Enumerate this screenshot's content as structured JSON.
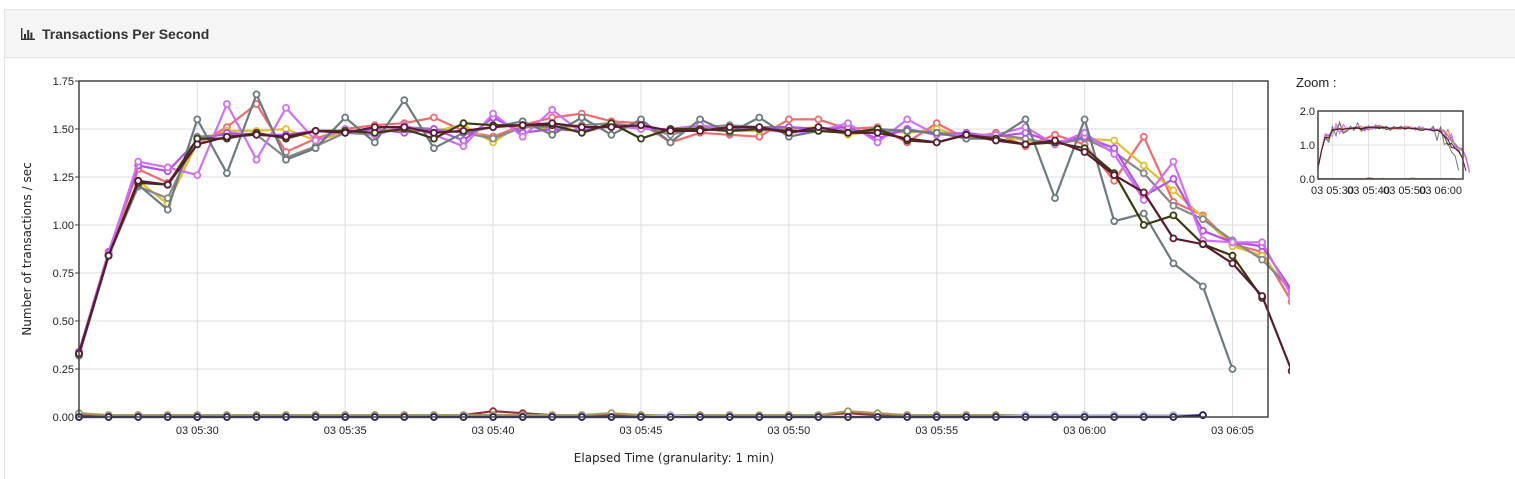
{
  "header": {
    "title": "Transactions Per Second",
    "icon": "bar-chart-icon"
  },
  "zoom": {
    "label": "Zoom :",
    "y_ticks": [
      "2.0",
      "1.0",
      "0.0"
    ],
    "x_ticks": [
      "03 05:30",
      "03 05:40",
      "03 05:50",
      "03 06:00"
    ]
  },
  "chart_data": {
    "type": "line",
    "title": "Transactions Per Second",
    "xlabel": "Elapsed Time (granularity: 1 min)",
    "ylabel": "Number of transactions / sec",
    "ylim": [
      0,
      1.75
    ],
    "xlim": [
      "03 05:26",
      "03 06:06"
    ],
    "y_ticks": [
      "0.00",
      "0.25",
      "0.50",
      "0.75",
      "1.00",
      "1.25",
      "1.50",
      "1.75"
    ],
    "x_ticks": [
      "03 05:30",
      "03 05:35",
      "03 05:40",
      "03 05:45",
      "03 05:50",
      "03 05:55",
      "03 06:00",
      "03 06:05"
    ],
    "grid": true,
    "x_start": "03 05:26",
    "x_step_minutes": 1,
    "series": [
      {
        "color": "#f06c6c",
        "values": [
          0.34,
          0.85,
          1.29,
          1.22,
          1.42,
          1.51,
          1.63,
          1.38,
          1.45,
          1.5,
          1.52,
          1.53,
          1.56,
          1.49,
          1.46,
          1.52,
          1.56,
          1.58,
          1.54,
          1.53,
          1.43,
          1.48,
          1.47,
          1.46,
          1.55,
          1.55,
          1.5,
          1.51,
          1.43,
          1.53,
          1.45,
          1.48,
          1.41,
          1.47,
          1.42,
          1.23,
          1.46,
          1.12,
          1.05,
          0.9,
          0.86,
          0.6,
          0.2
        ]
      },
      {
        "color": "#e0c030",
        "values": [
          0.33,
          0.85,
          1.23,
          1.11,
          1.43,
          1.49,
          1.49,
          1.5,
          1.44,
          1.48,
          1.5,
          1.49,
          1.49,
          1.52,
          1.43,
          1.53,
          1.49,
          1.52,
          1.53,
          1.51,
          1.48,
          1.5,
          1.49,
          1.49,
          1.5,
          1.51,
          1.47,
          1.49,
          1.48,
          1.5,
          1.46,
          1.47,
          1.44,
          1.43,
          1.45,
          1.44,
          1.31,
          1.18,
          1.04,
          0.89,
          0.84,
          0.65,
          0.22
        ]
      },
      {
        "color": "#888888",
        "values": [
          0.32,
          0.84,
          1.2,
          1.14,
          1.46,
          1.47,
          1.47,
          1.35,
          1.41,
          1.48,
          1.47,
          1.51,
          1.5,
          1.48,
          1.45,
          1.51,
          1.51,
          1.52,
          1.53,
          1.51,
          1.47,
          1.51,
          1.52,
          1.51,
          1.51,
          1.5,
          1.49,
          1.48,
          1.49,
          1.48,
          1.47,
          1.47,
          1.45,
          1.42,
          1.45,
          1.38,
          1.27,
          1.1,
          1.03,
          0.92,
          0.82,
          0.66,
          0.23
        ]
      },
      {
        "color": "#b44fe8",
        "values": [
          0.34,
          0.86,
          1.31,
          1.28,
          1.44,
          1.48,
          1.47,
          1.47,
          1.49,
          1.48,
          1.5,
          1.48,
          1.5,
          1.44,
          1.56,
          1.48,
          1.5,
          1.49,
          1.52,
          1.51,
          1.49,
          1.52,
          1.49,
          1.5,
          1.51,
          1.5,
          1.51,
          1.45,
          1.5,
          1.47,
          1.48,
          1.46,
          1.48,
          1.43,
          1.46,
          1.4,
          1.15,
          1.24,
          0.97,
          0.91,
          0.89,
          0.66,
          0.19
        ]
      },
      {
        "color": "#d070f0",
        "values": [
          0.33,
          0.85,
          1.33,
          1.3,
          1.26,
          1.63,
          1.34,
          1.61,
          1.44,
          1.5,
          1.47,
          1.52,
          1.47,
          1.41,
          1.58,
          1.46,
          1.6,
          1.48,
          1.52,
          1.5,
          1.5,
          1.52,
          1.5,
          1.5,
          1.48,
          1.49,
          1.53,
          1.43,
          1.55,
          1.47,
          1.47,
          1.47,
          1.51,
          1.42,
          1.48,
          1.37,
          1.13,
          1.33,
          0.92,
          0.91,
          0.91,
          0.63,
          0.2
        ]
      },
      {
        "color": "#6b7b80",
        "values": [
          0.32,
          0.84,
          1.21,
          1.08,
          1.55,
          1.27,
          1.68,
          1.34,
          1.4,
          1.56,
          1.43,
          1.65,
          1.4,
          1.48,
          1.51,
          1.54,
          1.47,
          1.56,
          1.47,
          1.55,
          1.43,
          1.55,
          1.48,
          1.56,
          1.46,
          1.49,
          1.48,
          1.5,
          1.49,
          1.48,
          1.45,
          1.45,
          1.55,
          1.14,
          1.55,
          1.02,
          1.06,
          0.8,
          0.68,
          0.25
        ]
      },
      {
        "color": "#3a3a10",
        "values": [
          0.33,
          0.84,
          1.22,
          1.21,
          1.45,
          1.45,
          1.48,
          1.45,
          1.49,
          1.49,
          1.48,
          1.5,
          1.45,
          1.53,
          1.52,
          1.52,
          1.52,
          1.48,
          1.53,
          1.45,
          1.5,
          1.5,
          1.49,
          1.5,
          1.49,
          1.49,
          1.48,
          1.5,
          1.44,
          1.43,
          1.47,
          1.45,
          1.42,
          1.43,
          1.4,
          1.27,
          1.0,
          1.05,
          0.9,
          0.84,
          0.62
        ]
      },
      {
        "color": "#5a1a30",
        "values": [
          0.33,
          0.84,
          1.23,
          1.21,
          1.42,
          1.46,
          1.47,
          1.46,
          1.49,
          1.48,
          1.51,
          1.51,
          1.48,
          1.49,
          1.51,
          1.52,
          1.53,
          1.51,
          1.51,
          1.52,
          1.49,
          1.49,
          1.51,
          1.51,
          1.48,
          1.51,
          1.48,
          1.48,
          1.45,
          1.43,
          1.47,
          1.44,
          1.42,
          1.44,
          1.38,
          1.26,
          1.17,
          0.93,
          0.9,
          0.8,
          0.63,
          0.24
        ]
      },
      {
        "color": "#9b2f2f",
        "values": [
          0.01,
          0.01,
          0.01,
          0.01,
          0.01,
          0.01,
          0.01,
          0.01,
          0.01,
          0.01,
          0.01,
          0.01,
          0.01,
          0.01,
          0.03,
          0.02,
          0.01,
          0.01,
          0.01,
          0.01,
          0.01,
          0.01,
          0.01,
          0.0,
          0.01,
          0.01,
          0.02,
          0.01,
          0.01,
          0.01,
          0.01,
          0.01,
          0.01,
          0.01,
          0.01,
          0.01,
          0.01,
          0.01,
          0.01
        ]
      },
      {
        "color": "#a09a60",
        "values": [
          0.02,
          0.01,
          0.01,
          0.01,
          0.01,
          0.01,
          0.01,
          0.01,
          0.01,
          0.01,
          0.01,
          0.01,
          0.01,
          0.01,
          0.01,
          0.01,
          0.01,
          0.01,
          0.02,
          0.01,
          0.01,
          0.01,
          0.01,
          0.01,
          0.01,
          0.01,
          0.03,
          0.02,
          0.01,
          0.01,
          0.01,
          0.01,
          0.01,
          0.01,
          0.01,
          0.01,
          0.01,
          0.01,
          0.01
        ]
      },
      {
        "color": "#b8c4d8",
        "values": [
          0.0,
          0.0,
          0.0,
          0.0,
          0.0,
          0.0,
          0.0,
          0.0,
          0.0,
          0.0,
          0.0,
          0.0,
          0.0,
          0.0,
          0.0,
          0.0,
          0.0,
          0.0,
          0.0,
          0.0,
          0.01,
          0.0,
          0.0,
          0.0,
          0.0,
          0.0,
          0.0,
          0.0,
          0.0,
          0.0,
          0.0,
          0.0,
          0.01,
          0.01,
          0.01,
          0.01,
          0.01,
          0.01,
          0.01
        ]
      },
      {
        "color": "#2a1a6a",
        "values": [
          0.0,
          0.0,
          0.0,
          0.0,
          0.0,
          0.0,
          0.0,
          0.0,
          0.0,
          0.0,
          0.0,
          0.0,
          0.0,
          0.0,
          0.0,
          0.0,
          0.0,
          0.0,
          0.0,
          0.0,
          0.0,
          0.0,
          0.0,
          0.0,
          0.0,
          0.0,
          0.0,
          0.0,
          0.0,
          0.0,
          0.0,
          0.0,
          0.0,
          0.0,
          0.0,
          0.0,
          0.0,
          0.0,
          0.01
        ]
      }
    ]
  }
}
